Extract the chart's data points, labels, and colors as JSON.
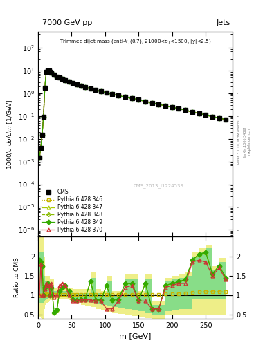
{
  "title_top": "7000 GeV pp",
  "title_right": "Jets",
  "xlabel": "m [GeV]",
  "ylabel_main": "1000/σ dσ/dm [1/GeV]",
  "ylabel_ratio": "Ratio to CMS",
  "watermark": "CMS_2013_I1224539",
  "rivet_text": "Rivet 3.1.10, ≥ 3M events",
  "arxiv_text": "[arXiv:1306.3436]",
  "mcplots_text": "mcplots.cern.ch",
  "m_values": [
    2,
    4,
    6,
    8,
    10,
    12,
    14,
    16,
    18,
    20,
    24,
    28,
    32,
    36,
    40,
    46,
    52,
    58,
    64,
    70,
    78,
    86,
    94,
    102,
    110,
    120,
    130,
    140,
    150,
    160,
    170,
    180,
    190,
    200,
    210,
    220,
    230,
    240,
    250,
    260,
    270,
    280
  ],
  "cms_values": [
    0.0015,
    0.004,
    0.015,
    0.09,
    1.7,
    8.5,
    10,
    10,
    9,
    8,
    6.5,
    5.5,
    4.8,
    4.2,
    3.8,
    3.3,
    2.8,
    2.4,
    2.1,
    1.85,
    1.6,
    1.4,
    1.2,
    1.05,
    0.92,
    0.78,
    0.68,
    0.6,
    0.52,
    0.44,
    0.38,
    0.33,
    0.28,
    0.24,
    0.21,
    0.18,
    0.15,
    0.13,
    0.11,
    0.095,
    0.082,
    0.07
  ],
  "p346_values": [
    0.0015,
    0.004,
    0.015,
    0.09,
    1.7,
    8.5,
    10,
    10,
    9,
    8,
    6.5,
    5.5,
    4.8,
    4.2,
    3.8,
    3.3,
    2.8,
    2.4,
    2.1,
    1.85,
    1.6,
    1.4,
    1.2,
    1.05,
    0.92,
    0.78,
    0.68,
    0.6,
    0.52,
    0.44,
    0.38,
    0.33,
    0.28,
    0.24,
    0.21,
    0.18,
    0.15,
    0.13,
    0.11,
    0.095,
    0.082,
    0.07
  ],
  "p347_values": [
    0.0015,
    0.004,
    0.015,
    0.09,
    1.7,
    8.5,
    10,
    10,
    9,
    8,
    6.5,
    5.5,
    4.8,
    4.2,
    3.8,
    3.3,
    2.8,
    2.4,
    2.1,
    1.85,
    1.6,
    1.4,
    1.2,
    1.05,
    0.92,
    0.78,
    0.68,
    0.6,
    0.52,
    0.44,
    0.38,
    0.33,
    0.28,
    0.24,
    0.21,
    0.18,
    0.15,
    0.13,
    0.11,
    0.095,
    0.082,
    0.07
  ],
  "p348_values": [
    0.0015,
    0.004,
    0.015,
    0.09,
    1.7,
    8.5,
    10,
    10,
    9,
    8,
    6.5,
    5.5,
    4.8,
    4.2,
    3.8,
    3.3,
    2.8,
    2.4,
    2.1,
    1.85,
    1.6,
    1.4,
    1.2,
    1.05,
    0.92,
    0.78,
    0.68,
    0.6,
    0.52,
    0.44,
    0.38,
    0.33,
    0.28,
    0.24,
    0.21,
    0.18,
    0.15,
    0.13,
    0.11,
    0.095,
    0.082,
    0.07
  ],
  "p349_values": [
    0.0015,
    0.004,
    0.015,
    0.09,
    1.7,
    8.5,
    10,
    10,
    9,
    8,
    6.5,
    5.5,
    4.8,
    4.2,
    3.8,
    3.3,
    2.8,
    2.4,
    2.1,
    1.85,
    1.6,
    1.4,
    1.2,
    1.05,
    0.92,
    0.78,
    0.68,
    0.6,
    0.52,
    0.44,
    0.38,
    0.33,
    0.28,
    0.24,
    0.21,
    0.18,
    0.15,
    0.13,
    0.11,
    0.095,
    0.082,
    0.07
  ],
  "p370_values": [
    0.0015,
    0.004,
    0.015,
    0.09,
    1.7,
    8.5,
    10,
    10,
    9,
    8,
    6.5,
    5.5,
    4.8,
    4.2,
    3.8,
    3.3,
    2.8,
    2.4,
    2.1,
    1.85,
    1.6,
    1.4,
    1.2,
    1.05,
    0.92,
    0.78,
    0.68,
    0.6,
    0.52,
    0.44,
    0.38,
    0.33,
    0.28,
    0.24,
    0.21,
    0.18,
    0.15,
    0.13,
    0.11,
    0.095,
    0.082,
    0.07
  ],
  "ratio_m": [
    2,
    4,
    6,
    8,
    10,
    12,
    14,
    16,
    18,
    20,
    24,
    28,
    32,
    36,
    40,
    46,
    52,
    58,
    64,
    70,
    78,
    86,
    94,
    102,
    110,
    120,
    130,
    140,
    150,
    160,
    170,
    180,
    190,
    200,
    210,
    220,
    230,
    240,
    250,
    260,
    270,
    280
  ],
  "ratio_p346": [
    1.0,
    1.0,
    1.0,
    1.0,
    1.0,
    1.04,
    1.02,
    1.01,
    1.01,
    1.01,
    1.01,
    1.01,
    1.01,
    1.01,
    1.01,
    1.01,
    1.01,
    1.01,
    1.01,
    1.01,
    1.01,
    1.01,
    1.01,
    1.01,
    1.01,
    1.02,
    1.02,
    1.02,
    1.02,
    1.02,
    1.02,
    1.02,
    1.03,
    1.03,
    1.04,
    1.05,
    1.07,
    1.08,
    1.09,
    1.09,
    1.09,
    1.09
  ],
  "ratio_p347": [
    1.9,
    1.85,
    1.75,
    1.0,
    1.2,
    1.25,
    1.3,
    1.25,
    1.0,
    1.2,
    0.55,
    0.62,
    1.1,
    1.2,
    1.25,
    1.1,
    0.9,
    0.88,
    0.9,
    0.9,
    1.35,
    0.88,
    0.88,
    1.25,
    0.88,
    0.9,
    1.3,
    1.3,
    0.88,
    1.3,
    0.65,
    0.65,
    1.25,
    1.3,
    1.35,
    1.4,
    1.9,
    2.05,
    2.1,
    1.55,
    1.75,
    1.45
  ],
  "ratio_p348": [
    1.9,
    1.85,
    1.75,
    1.0,
    1.2,
    1.25,
    1.3,
    1.25,
    1.0,
    1.2,
    0.55,
    0.62,
    1.1,
    1.2,
    1.25,
    1.1,
    0.9,
    0.88,
    0.9,
    0.9,
    1.35,
    0.88,
    0.88,
    1.25,
    0.88,
    0.9,
    1.3,
    1.3,
    0.88,
    1.3,
    0.65,
    0.65,
    1.25,
    1.3,
    1.35,
    1.4,
    1.9,
    2.05,
    2.1,
    1.55,
    1.75,
    1.45
  ],
  "ratio_p349": [
    1.9,
    1.85,
    1.75,
    1.0,
    1.2,
    1.25,
    1.3,
    1.25,
    1.0,
    1.2,
    0.55,
    0.62,
    1.1,
    1.2,
    1.25,
    1.1,
    0.9,
    0.88,
    0.9,
    0.9,
    1.35,
    0.88,
    0.88,
    1.25,
    0.88,
    0.9,
    1.3,
    1.3,
    0.88,
    1.3,
    0.65,
    0.65,
    1.25,
    1.3,
    1.35,
    1.4,
    1.9,
    2.05,
    2.1,
    1.55,
    1.75,
    1.45
  ],
  "ratio_p370": [
    1.0,
    1.8,
    1.0,
    1.0,
    1.15,
    1.3,
    1.25,
    1.25,
    1.0,
    1.3,
    0.95,
    1.0,
    1.25,
    1.3,
    1.25,
    1.0,
    0.85,
    0.85,
    0.88,
    0.88,
    0.88,
    0.85,
    0.85,
    0.65,
    0.65,
    0.85,
    1.2,
    1.25,
    0.85,
    0.85,
    0.65,
    0.65,
    1.2,
    1.25,
    1.3,
    1.3,
    1.85,
    1.9,
    1.85,
    1.5,
    1.7,
    1.4
  ],
  "band_green_lo": [
    0.8,
    0.8,
    0.8,
    0.85,
    0.88,
    0.9,
    0.92,
    0.93,
    0.94,
    0.95,
    0.95,
    0.95,
    0.95,
    0.95,
    0.95,
    0.95,
    0.9,
    0.88,
    0.85,
    0.82,
    0.8,
    0.78,
    0.75,
    0.72,
    0.7,
    0.68,
    0.65,
    0.62,
    0.6,
    0.55,
    0.5,
    0.5,
    0.6,
    0.62,
    0.65,
    0.65,
    0.9,
    0.9,
    0.9,
    0.9,
    0.9,
    0.9
  ],
  "band_green_hi": [
    2.1,
    2.1,
    2.1,
    1.5,
    1.35,
    1.35,
    1.35,
    1.35,
    1.25,
    1.25,
    1.1,
    1.1,
    1.1,
    1.1,
    1.1,
    1.1,
    1.05,
    1.05,
    1.05,
    1.05,
    1.45,
    1.05,
    1.0,
    1.35,
    1.0,
    1.0,
    1.4,
    1.4,
    1.0,
    1.4,
    0.75,
    0.75,
    1.35,
    1.4,
    1.45,
    1.5,
    2.0,
    2.1,
    2.2,
    1.65,
    1.85,
    1.6
  ],
  "band_yellow_lo": [
    0.45,
    0.42,
    0.4,
    0.65,
    0.75,
    0.8,
    0.82,
    0.85,
    0.87,
    0.88,
    0.9,
    0.9,
    0.9,
    0.9,
    0.9,
    0.88,
    0.82,
    0.8,
    0.75,
    0.72,
    0.7,
    0.65,
    0.62,
    0.58,
    0.55,
    0.52,
    0.5,
    0.47,
    0.45,
    0.42,
    0.38,
    0.38,
    0.5,
    0.5,
    0.5,
    0.5,
    0.5,
    0.5,
    0.5,
    0.5,
    0.5,
    0.5
  ],
  "band_yellow_hi": [
    2.5,
    2.5,
    2.5,
    2.0,
    1.5,
    1.5,
    1.5,
    1.5,
    1.4,
    1.4,
    1.2,
    1.2,
    1.2,
    1.2,
    1.2,
    1.2,
    1.15,
    1.15,
    1.15,
    1.15,
    1.6,
    1.15,
    1.1,
    1.5,
    1.1,
    1.1,
    1.55,
    1.55,
    1.1,
    1.55,
    0.85,
    0.85,
    1.45,
    1.5,
    1.55,
    1.6,
    2.1,
    2.2,
    2.3,
    1.75,
    1.95,
    1.7
  ],
  "ylim_main": [
    5e-07,
    500.0
  ],
  "ylim_ratio": [
    0.4,
    2.5
  ],
  "xlim": [
    0,
    290
  ],
  "color_346": "#c8b400",
  "color_347": "#aacc00",
  "color_348": "#88bb00",
  "color_349": "#33aa00",
  "color_370": "#cc3333",
  "color_cms": "#000000",
  "color_band_green": "#88dd88",
  "color_band_yellow": "#eeee88"
}
